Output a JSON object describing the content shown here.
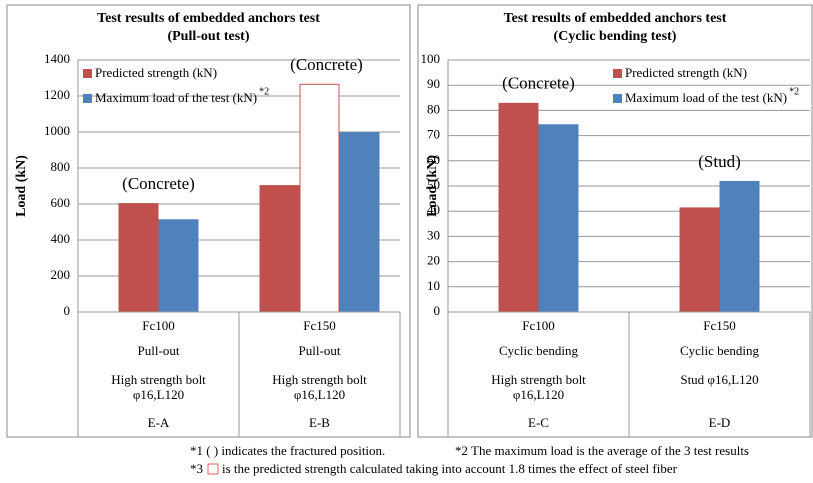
{
  "chart_data": [
    {
      "type": "bar",
      "title": [
        "Test results of embedded anchors test",
        "(Pull-out test)"
      ],
      "ylabel": "Load (kN)",
      "ylim": [
        0,
        1400
      ],
      "yticks": [
        0,
        200,
        400,
        600,
        800,
        1000,
        1200,
        1400
      ],
      "grid": true,
      "categories": [
        "E-A",
        "E-B"
      ],
      "category_details": [
        [
          "Fc100",
          "Pull-out",
          "High strength bolt",
          "φ16,L120"
        ],
        [
          "Fc150",
          "Pull-out",
          "High strength bolt",
          "φ16,L120"
        ]
      ],
      "series": [
        {
          "name": "Predicted strength (kN)",
          "color": "#c0504d",
          "values": [
            605,
            705
          ]
        },
        {
          "color": "#c0504d",
          "hollow": true,
          "values": [
            null,
            1265
          ]
        },
        {
          "name": "Maximum load of the test (kN)",
          "color": "#4f81bd",
          "values": [
            515,
            1000
          ]
        }
      ],
      "legend_note": "*2",
      "annotations": [
        {
          "text": "(Concrete)",
          "category": 0
        },
        {
          "text": "(Concrete)",
          "category": 1
        }
      ]
    },
    {
      "type": "bar",
      "title": [
        "Test results of embedded anchors test",
        "(Cyclic bending test)"
      ],
      "ylabel": "Load (kN)",
      "ylim": [
        0,
        100
      ],
      "yticks": [
        0,
        10,
        20,
        30,
        40,
        50,
        60,
        70,
        80,
        90,
        100
      ],
      "grid": true,
      "categories": [
        "E-C",
        "E-D"
      ],
      "category_details": [
        [
          "Fc100",
          "Cyclic bending",
          "High strength bolt",
          "φ16,L120"
        ],
        [
          "Fc150",
          "Cyclic bending",
          "Stud φ16,L120"
        ]
      ],
      "series": [
        {
          "name": "Predicted strength (kN)",
          "color": "#c0504d",
          "values": [
            83,
            41.5
          ]
        },
        {
          "name": "Maximum load of the test (kN)",
          "color": "#4f81bd",
          "values": [
            74.5,
            52
          ]
        }
      ],
      "legend_note": "*2",
      "annotations": [
        {
          "text": "(Concrete)",
          "category": 0
        },
        {
          "text": "(Stud)",
          "category": 1
        }
      ]
    }
  ],
  "footnotes": {
    "note1": "*1 ( ) indicates the fractured position.",
    "note2": "*2 The maximum load is the average of the 3 test results",
    "note3_prefix": "*3",
    "note3": "is the predicted strength calculated taking into account 1.8 times the effect of steel fiber"
  }
}
